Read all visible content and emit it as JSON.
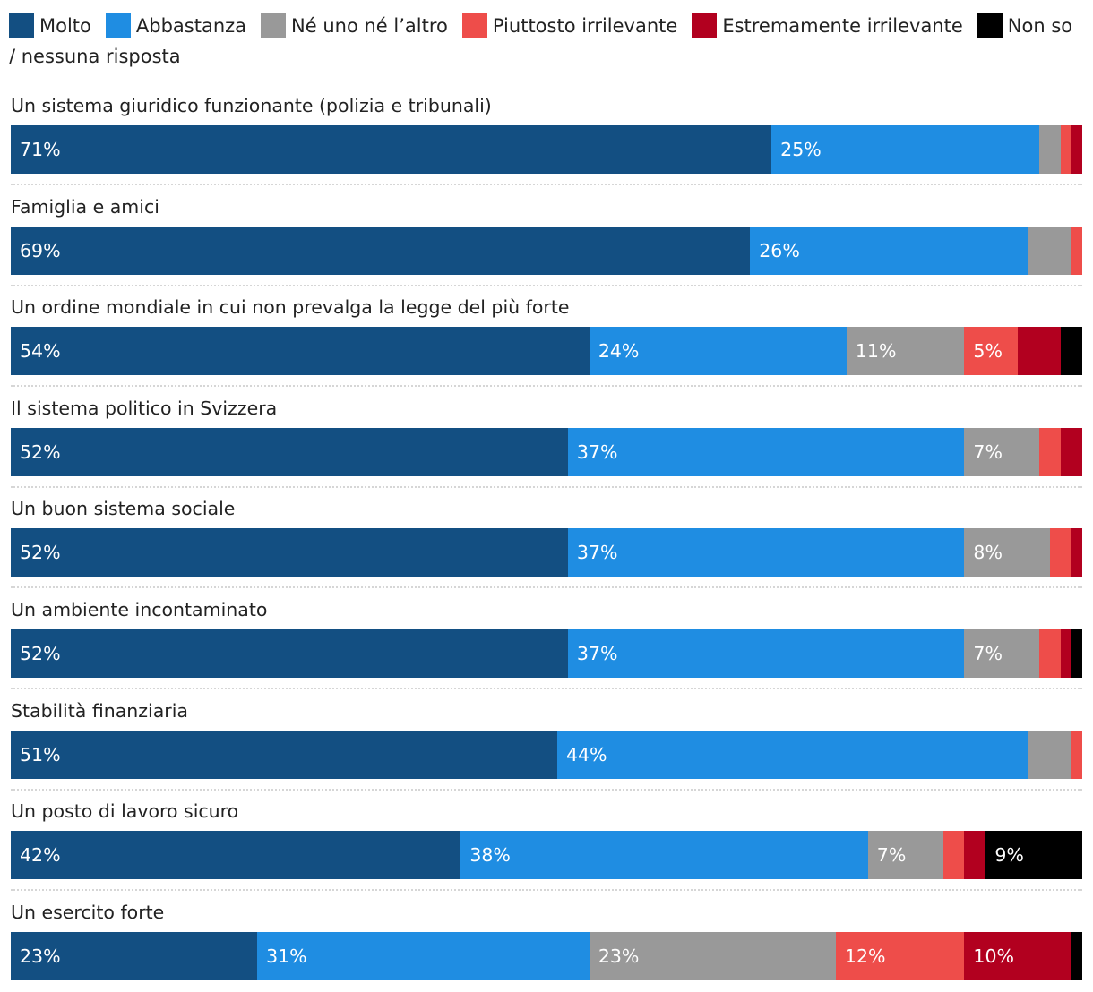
{
  "chart_data": {
    "type": "bar",
    "orientation": "horizontal",
    "stacked": true,
    "unit": "%",
    "legend_placement": "top",
    "series": [
      {
        "name": "Molto",
        "color": "#134f82"
      },
      {
        "name": "Abbastanza",
        "color": "#1f8de2"
      },
      {
        "name": "Né uno né l’altro",
        "color": "#999999"
      },
      {
        "name": "Piuttosto irrilevante",
        "color": "#ee4d4a"
      },
      {
        "name": "Estremamente irrilevante",
        "color": "#b2001f"
      },
      {
        "name": "Non so / nessuna risposta",
        "color": "#000000"
      }
    ],
    "categories": [
      "Un sistema giuridico funzionante (polizia e tribunali)",
      "Famiglia e amici",
      "Un ordine mondiale in cui non prevalga la legge del più forte",
      "Il sistema politico in Svizzera",
      "Un buon sistema sociale",
      "Un ambiente incontaminato",
      "Stabilità finanziaria",
      "Un posto di lavoro sicuro",
      "Un esercito forte"
    ],
    "values": [
      [
        71,
        25,
        2,
        1,
        1,
        0
      ],
      [
        69,
        26,
        4,
        1,
        0,
        0
      ],
      [
        54,
        24,
        11,
        5,
        4,
        2
      ],
      [
        52,
        37,
        7,
        2,
        2,
        0
      ],
      [
        52,
        37,
        8,
        2,
        1,
        0
      ],
      [
        52,
        37,
        7,
        2,
        1,
        1
      ],
      [
        51,
        44,
        4,
        1,
        0,
        0
      ],
      [
        42,
        38,
        7,
        2,
        2,
        9
      ],
      [
        23,
        31,
        23,
        12,
        10,
        1
      ]
    ],
    "label_min": 5
  }
}
